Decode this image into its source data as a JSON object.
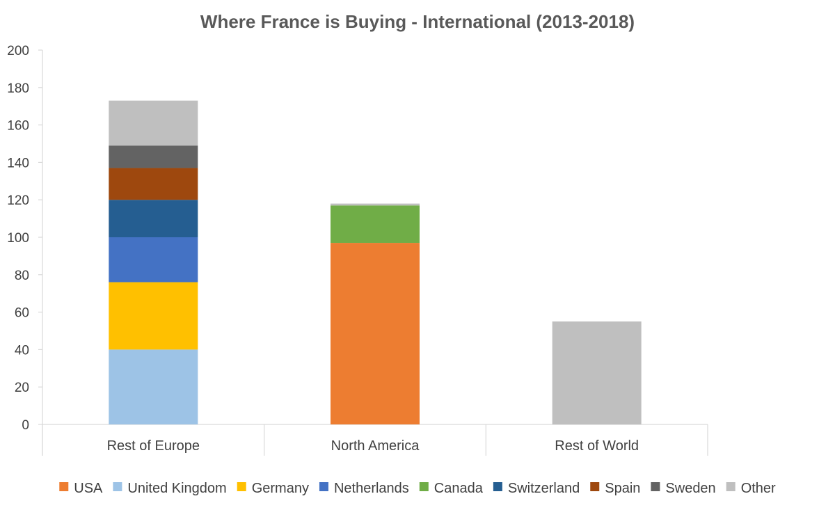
{
  "chart_data": {
    "type": "bar",
    "stacked": true,
    "title": "Where France is Buying - International (2013-2018)",
    "xlabel": "",
    "ylabel": "",
    "ylim": [
      0,
      200
    ],
    "yticks": [
      0,
      20,
      40,
      60,
      80,
      100,
      120,
      140,
      160,
      180,
      200
    ],
    "grid": false,
    "legend": "bottom",
    "categories": [
      "Rest of Europe",
      "North America",
      "Rest of World"
    ],
    "series": [
      {
        "name": "USA",
        "color": "#ED7D31",
        "values": [
          0,
          97,
          0
        ]
      },
      {
        "name": "United Kingdom",
        "color": "#9DC3E6",
        "values": [
          40,
          0,
          0
        ]
      },
      {
        "name": "Germany",
        "color": "#FFC000",
        "values": [
          36,
          0,
          0
        ]
      },
      {
        "name": "Netherlands",
        "color": "#4472C4",
        "values": [
          24,
          0,
          0
        ]
      },
      {
        "name": "Canada",
        "color": "#70AD47",
        "values": [
          0,
          20,
          0
        ]
      },
      {
        "name": "Switzerland",
        "color": "#255E91",
        "values": [
          20,
          0,
          0
        ]
      },
      {
        "name": "Spain",
        "color": "#9E480E",
        "values": [
          17,
          0,
          0
        ]
      },
      {
        "name": "Sweden",
        "color": "#636363",
        "values": [
          12,
          0,
          0
        ]
      },
      {
        "name": "Other",
        "color": "#BFBFBF",
        "values": [
          24,
          1,
          55
        ]
      }
    ]
  }
}
